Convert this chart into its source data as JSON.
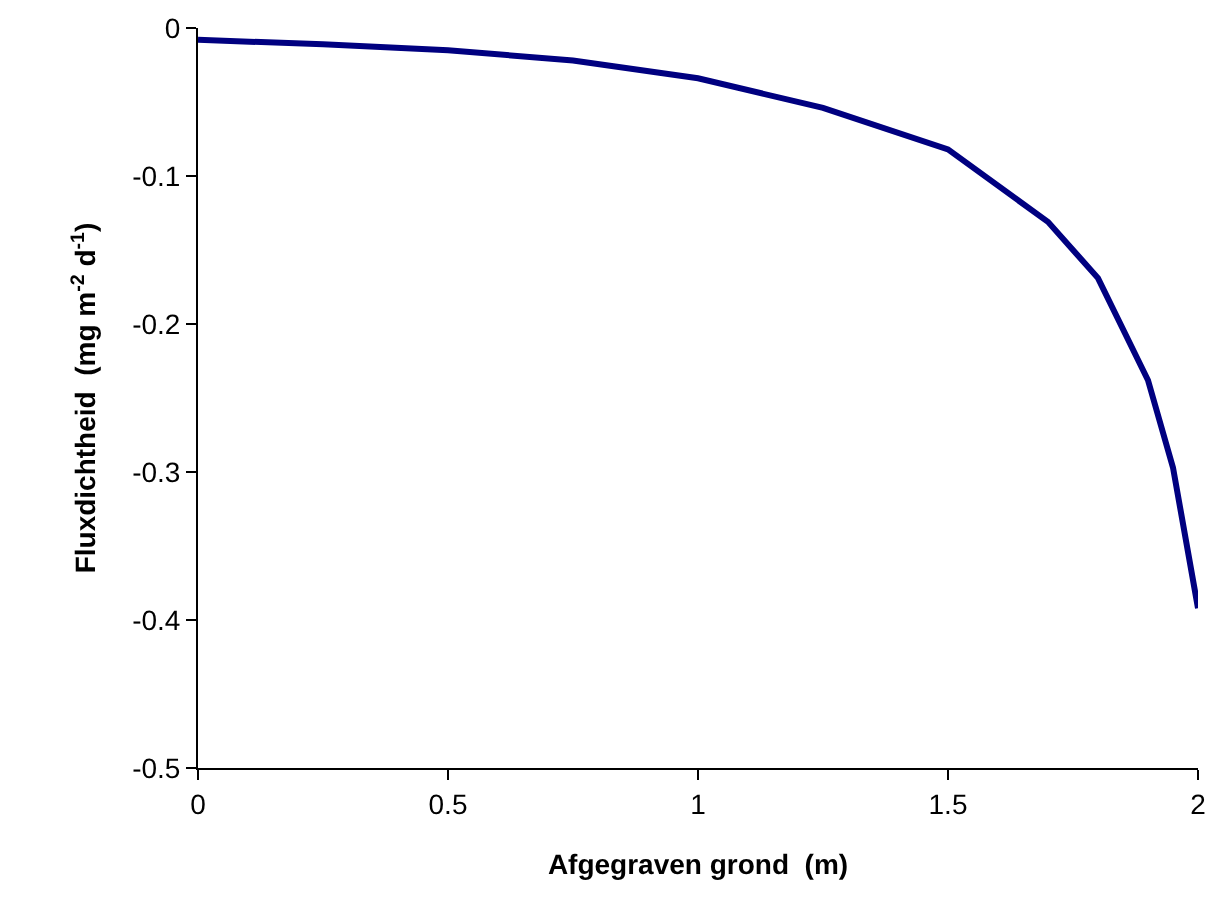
{
  "chart_data": {
    "type": "line",
    "xlabel": "Afgegraven grond  (m)",
    "ylabel": "Fluxdichtheid  (mg m$^{-2}$ d$^{-1}$)",
    "x": [
      0,
      0.25,
      0.5,
      0.75,
      1,
      1.25,
      1.5,
      1.7,
      1.8,
      1.9,
      1.95,
      2
    ],
    "series": [
      {
        "color": "#000080",
        "values": [
          -0.008,
          -0.011,
          -0.015,
          -0.022,
          -0.034,
          -0.054,
          -0.082,
          -0.131,
          -0.169,
          -0.238,
          -0.297,
          -0.392
        ]
      }
    ],
    "xlim": [
      0,
      2
    ],
    "xticks": [
      0,
      0.5,
      1,
      1.5,
      2
    ],
    "ylim": [
      -0.5,
      0
    ],
    "yticks": [
      -0.5,
      -0.4,
      -0.3,
      -0.2,
      -0.1,
      0
    ],
    "marker": "none",
    "line_style": "solid"
  }
}
